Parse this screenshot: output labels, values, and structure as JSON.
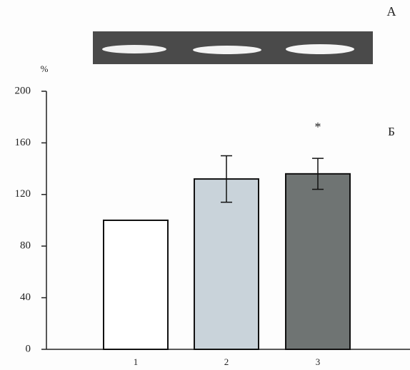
{
  "chart_data": {
    "type": "bar",
    "panel_labels": [
      "А",
      "Б"
    ],
    "ylabel": "%",
    "categories": [
      "1",
      "2",
      "3"
    ],
    "values": [
      100,
      132,
      136
    ],
    "errors": [
      null,
      18,
      12
    ],
    "colors": [
      "#ffffff",
      "#c9d3da",
      "#6f7473"
    ],
    "significance_labels": [
      null,
      null,
      "*"
    ],
    "ylim": [
      0,
      200
    ],
    "yticks": [
      0,
      40,
      80,
      120,
      160,
      200
    ]
  }
}
